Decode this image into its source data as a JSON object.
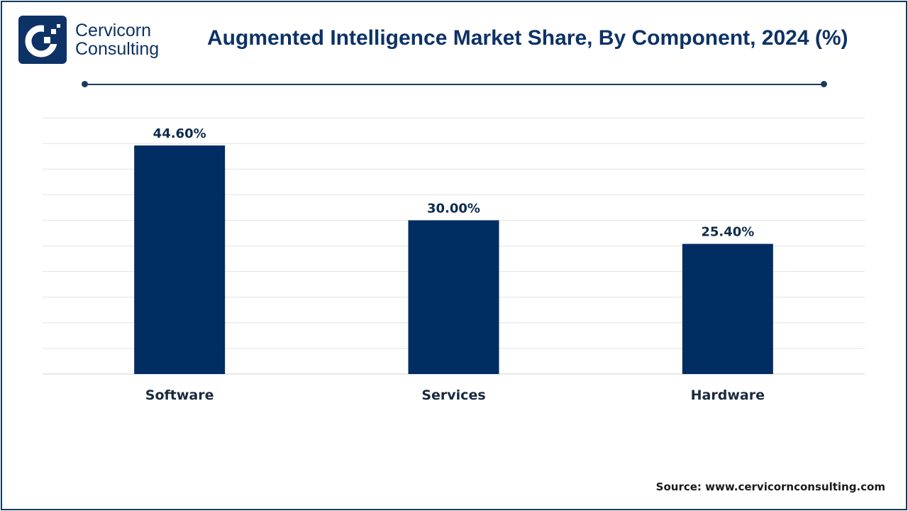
{
  "header": {
    "logo_line1": "Cervicorn",
    "logo_line2": "Consulting",
    "title": "Augmented Intelligence Market Share, By Component, 2024 (%)"
  },
  "footer": {
    "source": "Source: www.cervicornconsulting.com"
  },
  "colors": {
    "bar": "#002d62",
    "brand": "#0d3266",
    "grid": "#e3e3e3"
  },
  "chart_data": {
    "type": "bar",
    "categories": [
      "Software",
      "Services",
      "Hardware"
    ],
    "values": [
      44.6,
      30.0,
      25.4
    ],
    "data_labels": [
      "44.60%",
      "30.00%",
      "25.40%"
    ],
    "title": "Augmented Intelligence Market Share, By Component, 2024 (%)",
    "xlabel": "",
    "ylabel": "",
    "ylim": [
      0,
      50
    ],
    "grid": true,
    "legend": "none"
  }
}
